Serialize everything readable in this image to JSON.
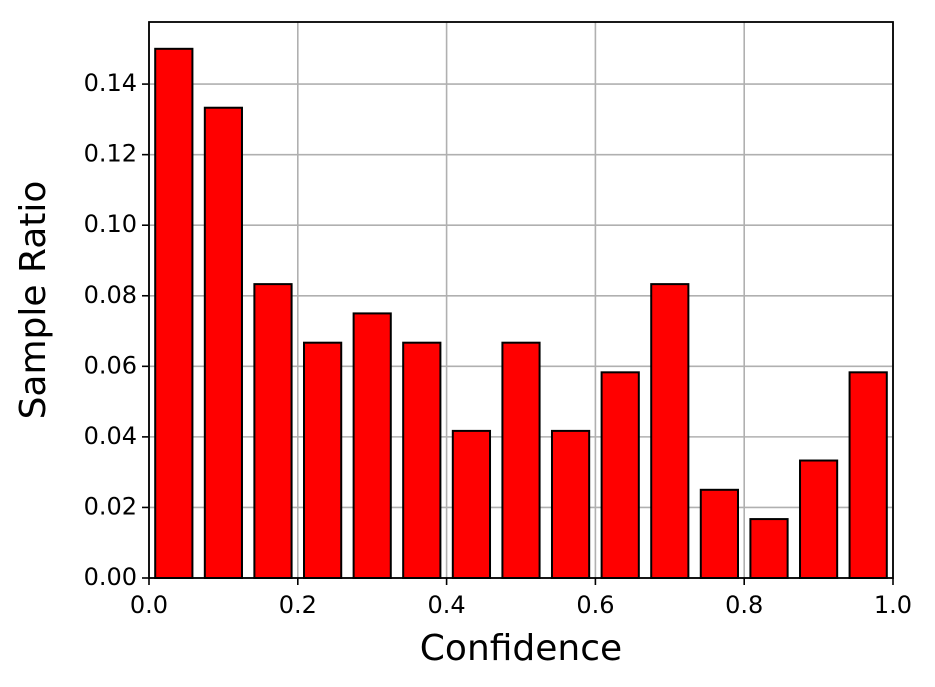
{
  "chart_data": {
    "type": "histogram",
    "x_label": "Confidence",
    "y_label": "Sample Ratio",
    "bins": [
      0,
      0.0667,
      0.1333,
      0.2,
      0.2667,
      0.3333,
      0.4,
      0.4667,
      0.5333,
      0.6,
      0.6667,
      0.7333,
      0.8,
      0.8667,
      0.9333,
      1
    ],
    "values": [
      0.15,
      0.1333,
      0.0833,
      0.0667,
      0.075,
      0.0667,
      0.0417,
      0.0667,
      0.0417,
      0.0583,
      0.0833,
      0.025,
      0.0167,
      0.0333,
      0.0583
    ],
    "color": "#ff0000",
    "edgecolor": "#000000",
    "xlim": [
      0,
      1
    ],
    "xticks": [
      {
        "value": 0,
        "label": "0.0"
      },
      {
        "value": 0.2,
        "label": "0.2"
      },
      {
        "value": 0.4,
        "label": "0.4"
      },
      {
        "value": 0.6,
        "label": "0.6"
      },
      {
        "value": 0.8,
        "label": "0.8"
      },
      {
        "value": 1,
        "label": "1.0"
      }
    ],
    "ylim": [
      0,
      0.1576
    ],
    "yticks": [
      {
        "value": 0,
        "label": "0.00"
      },
      {
        "value": 0.02,
        "label": "0.02"
      },
      {
        "value": 0.04,
        "label": "0.04"
      },
      {
        "value": 0.06,
        "label": "0.06"
      },
      {
        "value": 0.08,
        "label": "0.08"
      },
      {
        "value": 0.1,
        "label": "0.10"
      },
      {
        "value": 0.12,
        "label": "0.12"
      },
      {
        "value": 0.14,
        "label": "0.14"
      }
    ],
    "grid": true
  }
}
